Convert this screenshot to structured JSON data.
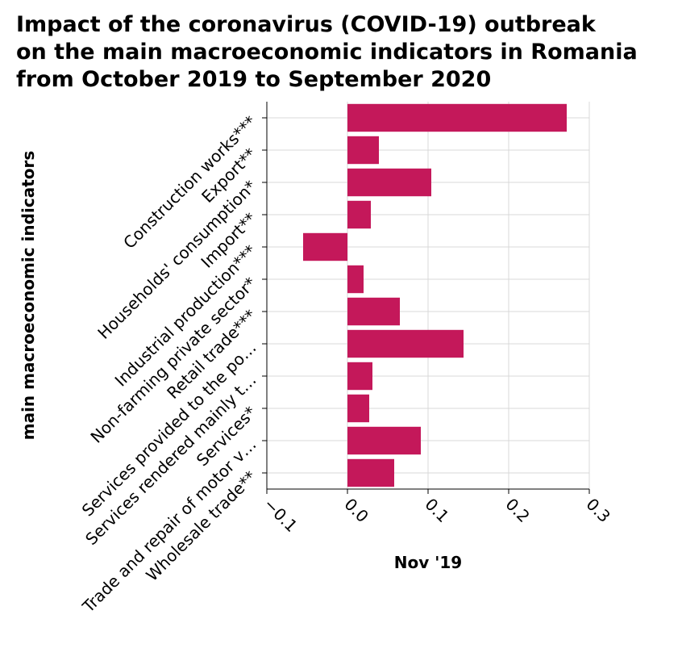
{
  "chart_data": {
    "type": "bar",
    "orientation": "horizontal",
    "title": [
      "Impact of the coronavirus (COVID-19) outbreak",
      "on the main macroeconomic indicators in Romania",
      "from October 2019 to September 2020"
    ],
    "xlabel": "Nov '19",
    "ylabel": "main macroeconomic indicators",
    "categories": [
      "Construction works***",
      "Export**",
      "Households' consumption*",
      "Import**",
      "Industrial production***",
      "Non-farming private sector*",
      "Retail trade***",
      "Services provided to the po…",
      "Services rendered mainly t…",
      "Services*",
      "Trade and repair of motor v…",
      "Wholesale trade**"
    ],
    "values": [
      0.272,
      0.039,
      0.104,
      0.029,
      -0.055,
      0.02,
      0.065,
      0.144,
      0.031,
      0.027,
      0.091,
      0.058
    ],
    "xlim": [
      -0.1,
      0.3
    ],
    "xticks": [
      "−0.1",
      "0.0",
      "0.1",
      "0.2",
      "0.3"
    ],
    "xtick_values": [
      -0.1,
      0.0,
      0.1,
      0.2,
      0.3
    ],
    "grid": true,
    "legend": "none",
    "bar_color": "#c4185a",
    "grid_color": "#d9d9d9"
  }
}
